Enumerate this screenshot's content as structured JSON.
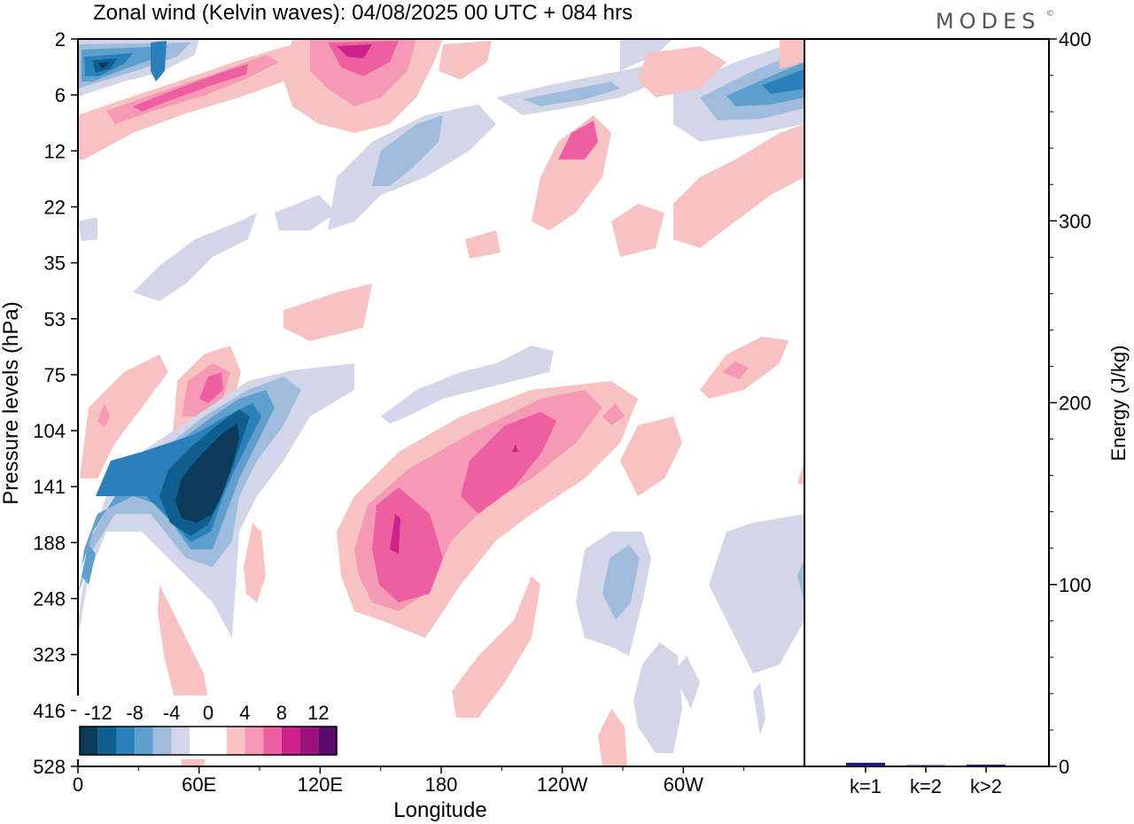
{
  "brand": "MODES",
  "brand_mark": "©",
  "chart_data": [
    {
      "type": "heatmap",
      "title": "Zonal wind (Kelvin waves):  04/08/2025  00 UTC  + 084 hrs",
      "xlabel": "Longitude",
      "ylabel": "Pressure levels (hPa)",
      "x_ticks": [
        "0",
        "60E",
        "120E",
        "180",
        "120W",
        "60W"
      ],
      "x_tick_values": [
        0,
        60,
        120,
        180,
        240,
        300
      ],
      "xlim": [
        0,
        360
      ],
      "y_ticks": [
        "2",
        "6",
        "12",
        "22",
        "35",
        "53",
        "75",
        "104",
        "141",
        "188",
        "248",
        "323",
        "416",
        "528"
      ],
      "colorbar": {
        "labels": [
          "-12",
          "-8",
          "-4",
          "0",
          "4",
          "8",
          "12"
        ],
        "levels": [
          -14,
          -12,
          -10,
          -8,
          -6,
          -4,
          -2,
          0,
          2,
          4,
          6,
          8,
          10,
          12,
          14
        ],
        "colors": [
          "#0b3a5a",
          "#0e5e90",
          "#2a80b8",
          "#5f9fcd",
          "#9fbcdc",
          "#d3d6e8",
          "#ffffff",
          "#ffffff",
          "#f8c2c2",
          "#f59ab5",
          "#ee5fa1",
          "#cd218c",
          "#9b137a",
          "#5b0a6e"
        ]
      },
      "features": [
        {
          "name": "upper stratosphere easterly band",
          "lon": [
            0,
            60
          ],
          "level": "2-6",
          "value": -10
        },
        {
          "name": "upper stratosphere westerly band",
          "lon": [
            20,
            120
          ],
          "level": "4-8",
          "value": 6
        },
        {
          "name": "stratosphere westerly band",
          "lon": [
            110,
            170
          ],
          "level": "2-6",
          "value": 6
        },
        {
          "name": "east pacific easterly band",
          "lon": [
            300,
            360
          ],
          "level": "2-6",
          "value": -8
        },
        {
          "name": "mid stratosphere easterly",
          "lon": [
            120,
            200
          ],
          "level": "8-22",
          "value": -4
        },
        {
          "name": "westerly cell near 75 hPa",
          "lon": [
            50,
            80
          ],
          "level": "60-110",
          "value": 6
        },
        {
          "name": "easterly core",
          "lon": [
            40,
            80
          ],
          "level": "100-200",
          "value": -13
        },
        {
          "name": "westerly core west",
          "lon": [
            145,
            175
          ],
          "level": "120-260",
          "value": 9
        },
        {
          "name": "westerly core east",
          "lon": [
            185,
            240
          ],
          "level": "100-180",
          "value": 8
        },
        {
          "name": "upper troposphere easterly",
          "lon": [
            245,
            280
          ],
          "level": "180-330",
          "value": -6
        },
        {
          "name": "lower troposphere easterly",
          "lon": [
            270,
            300
          ],
          "level": "300-528",
          "value": -3
        }
      ]
    },
    {
      "type": "bar",
      "ylabel": "Energy (J/kg)",
      "categories": [
        "k=1",
        "k=2",
        "k>2"
      ],
      "values": [
        2,
        0.5,
        1
      ],
      "ylim": [
        0,
        400
      ],
      "y_ticks": [
        "0",
        "100",
        "200",
        "300",
        "400"
      ],
      "y_tick_values": [
        0,
        100,
        200,
        300,
        400
      ],
      "bar_color": "#1a1a80"
    }
  ]
}
